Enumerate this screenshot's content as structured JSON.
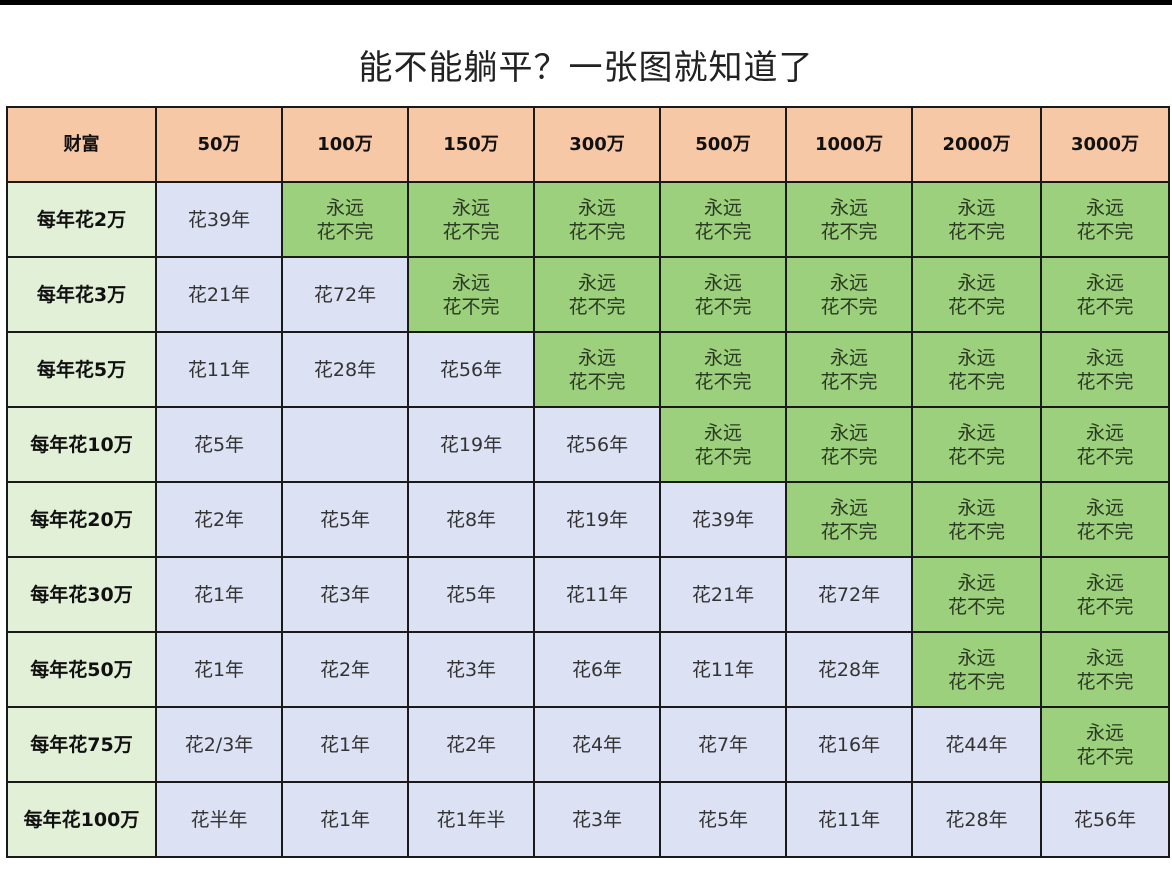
{
  "title": "能不能躺平？一张图就知道了",
  "colors": {
    "header": "#f7c8a6",
    "row_label": "#e3f0d8",
    "finite": "#dce2f4",
    "forever": "#9dd07d"
  },
  "table": {
    "corner": "财富",
    "columns": [
      "50万",
      "100万",
      "150万",
      "300万",
      "500万",
      "1000万",
      "2000万",
      "3000万"
    ],
    "rows": [
      {
        "label": "每年花2万",
        "cells": [
          "花39年",
          "永远\n花不完",
          "永远\n花不完",
          "永远\n花不完",
          "永远\n花不完",
          "永远\n花不完",
          "永远\n花不完",
          "永远\n花不完"
        ]
      },
      {
        "label": "每年花3万",
        "cells": [
          "花21年",
          "花72年",
          "永远\n花不完",
          "永远\n花不完",
          "永远\n花不完",
          "永远\n花不完",
          "永远\n花不完",
          "永远\n花不完"
        ]
      },
      {
        "label": "每年花5万",
        "cells": [
          "花11年",
          "花28年",
          "花56年",
          "永远\n花不完",
          "永远\n花不完",
          "永远\n花不完",
          "永远\n花不完",
          "永远\n花不完"
        ]
      },
      {
        "label": "每年花10万",
        "cells": [
          "花5年",
          "",
          "花19年",
          "花56年",
          "永远\n花不完",
          "永远\n花不完",
          "永远\n花不完",
          "永远\n花不完"
        ]
      },
      {
        "label": "每年花20万",
        "cells": [
          "花2年",
          "花5年",
          "花8年",
          "花19年",
          "花39年",
          "永远\n花不完",
          "永远\n花不完",
          "永远\n花不完"
        ]
      },
      {
        "label": "每年花30万",
        "cells": [
          "花1年",
          "花3年",
          "花5年",
          "花11年",
          "花21年",
          "花72年",
          "永远\n花不完",
          "永远\n花不完"
        ]
      },
      {
        "label": "每年花50万",
        "cells": [
          "花1年",
          "花2年",
          "花3年",
          "花6年",
          "花11年",
          "花28年",
          "永远\n花不完",
          "永远\n花不完"
        ]
      },
      {
        "label": "每年花75万",
        "cells": [
          "花2/3年",
          "花1年",
          "花2年",
          "花4年",
          "花7年",
          "花16年",
          "花44年",
          "永远\n花不完"
        ]
      },
      {
        "label": "每年花100万",
        "cells": [
          "花半年",
          "花1年",
          "花1年半",
          "花3年",
          "花5年",
          "花11年",
          "花28年",
          "花56年"
        ]
      }
    ]
  }
}
